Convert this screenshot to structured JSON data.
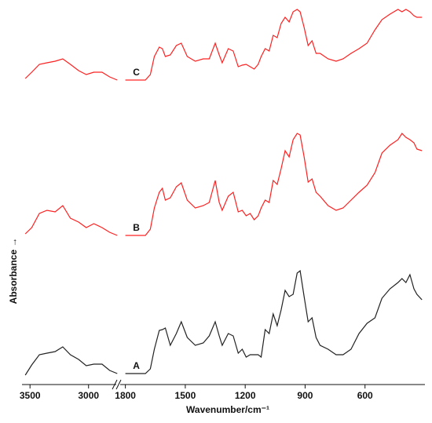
{
  "chart_data": {
    "type": "line",
    "x_label": "Wavenumber/cm⁻¹",
    "y_label": "Absorbance →",
    "xlim": [
      3555,
      300
    ],
    "xbreak": [
      2750,
      1830
    ],
    "ylim": [
      0,
      480
    ],
    "xticks": [
      3500,
      3000,
      1800,
      1500,
      1200,
      900,
      600
    ],
    "x": [
      3540,
      3485,
      3420,
      3355,
      3285,
      3220,
      3155,
      3085,
      3020,
      2955,
      2885,
      2820,
      2755,
      1800,
      1700,
      1675,
      1655,
      1630,
      1615,
      1600,
      1575,
      1545,
      1520,
      1490,
      1450,
      1410,
      1380,
      1350,
      1330,
      1315,
      1285,
      1260,
      1235,
      1215,
      1195,
      1175,
      1155,
      1135,
      1120,
      1100,
      1080,
      1060,
      1040,
      1020,
      1000,
      980,
      960,
      940,
      925,
      905,
      885,
      865,
      845,
      825,
      785,
      745,
      710,
      670,
      630,
      590,
      550,
      515,
      475,
      435,
      415,
      395,
      375,
      355,
      340,
      315
    ],
    "series": [
      {
        "name": "A",
        "color": "#222222",
        "values": [
          7,
          20,
          33,
          35,
          37,
          43,
          33,
          27,
          19,
          21,
          21,
          13,
          9,
          9,
          9,
          15,
          40,
          64,
          65,
          67,
          45,
          60,
          75,
          55,
          45,
          48,
          57,
          75,
          57,
          45,
          60,
          57,
          35,
          40,
          30,
          33,
          33,
          33,
          30,
          65,
          60,
          85,
          70,
          90,
          115,
          107,
          110,
          137,
          140,
          107,
          75,
          80,
          55,
          45,
          40,
          33,
          33,
          40,
          60,
          73,
          80,
          105,
          117,
          125,
          130,
          125,
          135,
          117,
          110,
          103
        ]
      },
      {
        "name": "B",
        "color": "#ff2020",
        "values": [
          187,
          195,
          213,
          217,
          215,
          223,
          207,
          202,
          195,
          200,
          195,
          189,
          185,
          185,
          185,
          193,
          220,
          240,
          245,
          230,
          233,
          247,
          252,
          230,
          220,
          223,
          227,
          255,
          227,
          217,
          235,
          240,
          215,
          217,
          210,
          213,
          205,
          210,
          220,
          230,
          227,
          255,
          250,
          270,
          293,
          285,
          307,
          315,
          313,
          285,
          253,
          257,
          240,
          235,
          223,
          217,
          220,
          230,
          240,
          249,
          265,
          290,
          300,
          307,
          315,
          310,
          307,
          303,
          295,
          293
        ]
      },
      {
        "name": "C",
        "color": "#ff2020",
        "values": [
          385,
          393,
          403,
          405,
          407,
          410,
          403,
          395,
          390,
          393,
          393,
          387,
          383,
          383,
          383,
          390,
          413,
          425,
          423,
          413,
          415,
          427,
          430,
          413,
          407,
          410,
          410,
          430,
          415,
          405,
          423,
          420,
          400,
          402,
          403,
          400,
          397,
          403,
          413,
          423,
          420,
          440,
          437,
          455,
          463,
          457,
          470,
          473,
          470,
          450,
          427,
          433,
          417,
          417,
          410,
          407,
          410,
          417,
          423,
          430,
          447,
          460,
          467,
          473,
          470,
          473,
          470,
          465,
          463,
          463
        ]
      }
    ]
  }
}
